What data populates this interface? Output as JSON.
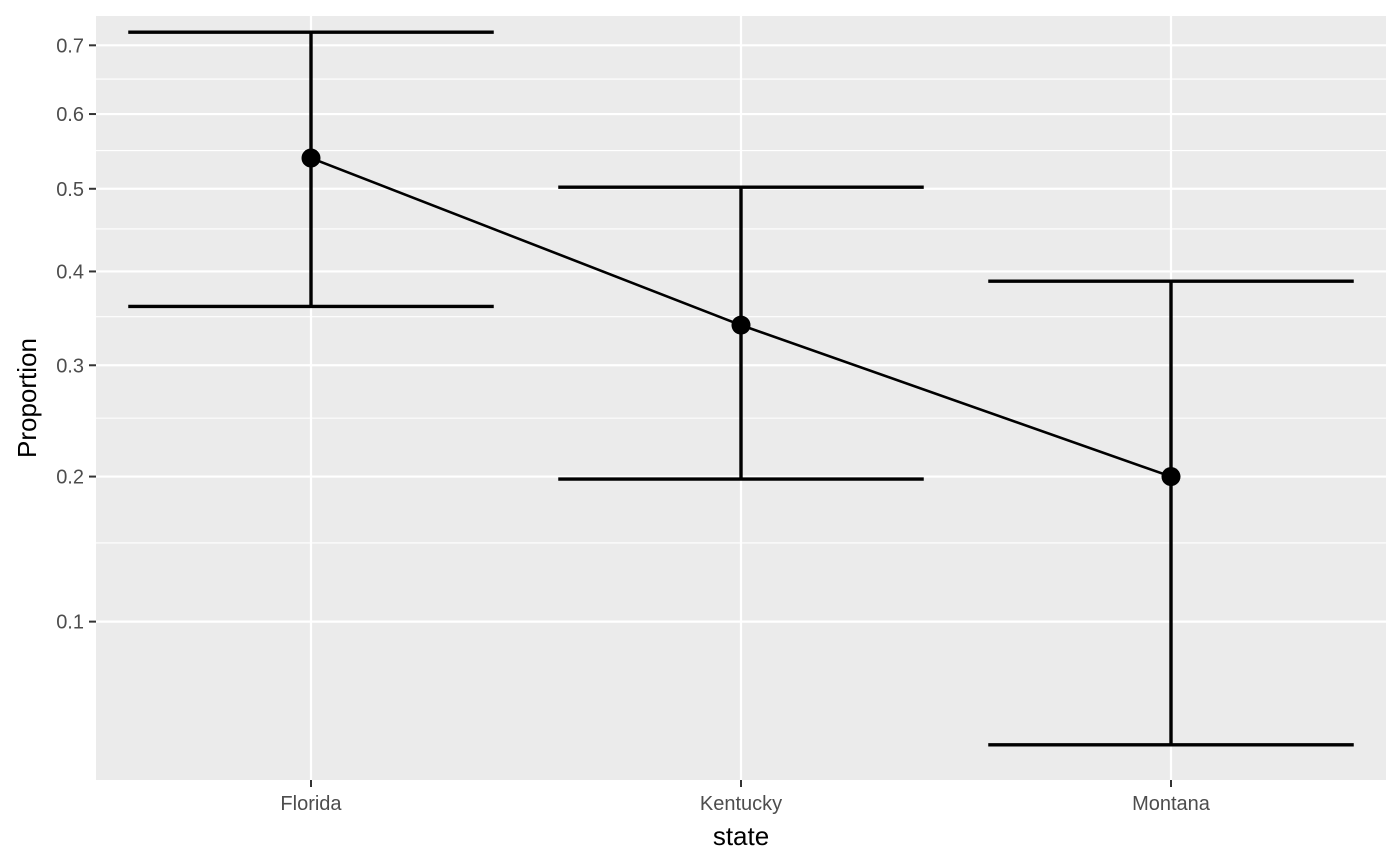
{
  "chart_data": {
    "type": "line",
    "subtype": "pointrange-errorbar",
    "xlabel": "state",
    "ylabel": "Proportion",
    "y_scale": "sqrt",
    "ylim": [
      0.03,
      0.745
    ],
    "categories": [
      "Florida",
      "Kentucky",
      "Montana"
    ],
    "estimates": [
      0.54,
      0.341,
      0.2
    ],
    "lower": [
      0.361,
      0.198,
      0.042
    ],
    "upper": [
      0.72,
      0.502,
      0.389
    ],
    "y_major_ticks": [
      0.1,
      0.2,
      0.3,
      0.4,
      0.5,
      0.6,
      0.7
    ],
    "y_tick_labels": [
      "0.1",
      "0.2",
      "0.3",
      "0.4",
      "0.5",
      "0.6",
      "0.7"
    ],
    "y_minor_ticks": [
      0.15,
      0.25,
      0.35,
      0.45,
      0.55,
      0.65
    ],
    "grid": true,
    "legend": "none",
    "colors": {
      "panel_background": "#ebebeb",
      "grid": "#ffffff",
      "series": "#000000",
      "tick_text": "#4d4d4d",
      "tick_mark": "#333333"
    }
  }
}
